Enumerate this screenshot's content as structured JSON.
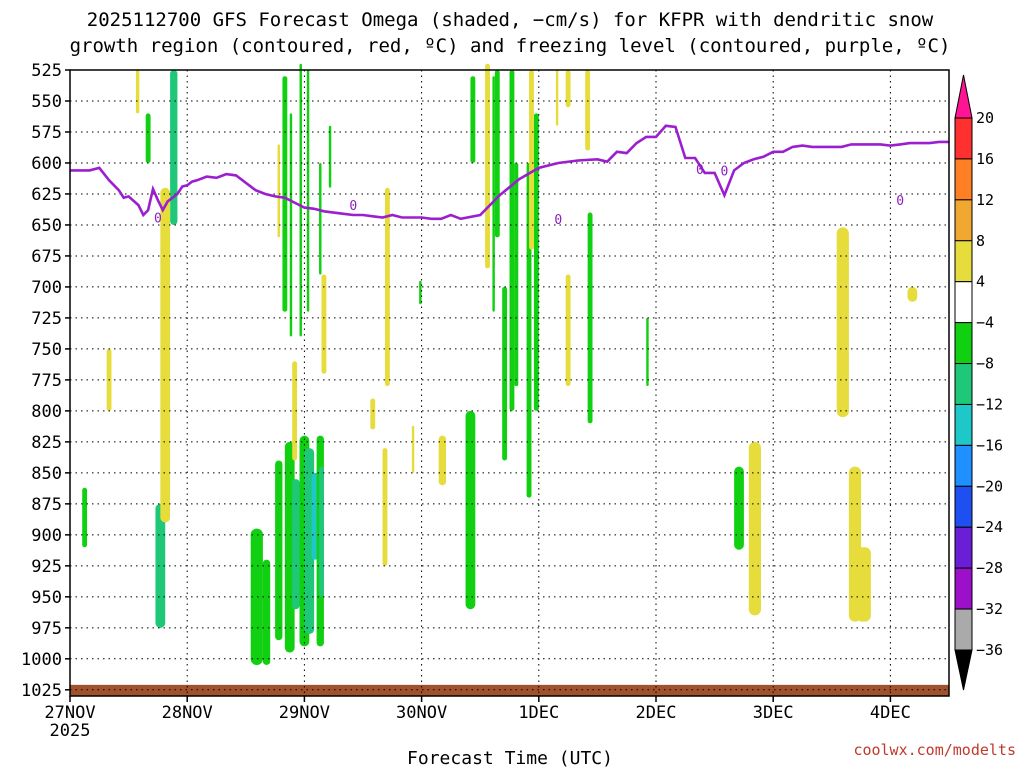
{
  "title_line1": "2025112700 GFS Forecast Omega (shaded, −cm/s) for KFPR with dendritic snow",
  "title_line2": "growth region (contoured, red, ºC) and freezing level (contoured, purple, ºC)",
  "xlabel": "Forecast Time (UTC)",
  "credit": "coolwx.com/modelts",
  "colors": {
    "freezing_level": "#9b1fcf",
    "ground": "#a0522d",
    "grid": "#000000"
  },
  "chart_data": {
    "type": "heatmap",
    "x_tick_labels": [
      "27NOV",
      "28NOV",
      "29NOV",
      "30NOV",
      "1DEC",
      "2DEC",
      "3DEC",
      "4DEC"
    ],
    "x_tick_sublabel": "2025",
    "x_range_hours": [
      0,
      180
    ],
    "y_axis": "pressure (hPa), inverted",
    "y_ticks": [
      525,
      550,
      575,
      600,
      625,
      650,
      675,
      700,
      725,
      750,
      775,
      800,
      825,
      850,
      875,
      900,
      925,
      950,
      975,
      1000,
      1025
    ],
    "y_range": [
      525,
      1030
    ],
    "grid": true,
    "colorbar": {
      "labels": [
        "20",
        "16",
        "12",
        "8",
        "4",
        "−4",
        "−8",
        "−12",
        "−16",
        "−20",
        "−24",
        "−28",
        "−32",
        "−36"
      ],
      "colors": [
        "#ff1493",
        "#ff3030",
        "#ff7f24",
        "#f0a830",
        "#e6dc3c",
        "#ffffff",
        "#11d011",
        "#1ec878",
        "#1ec8c8",
        "#1e90ff",
        "#1e4ff0",
        "#6a1fd6",
        "#9b10c8",
        "#aaaaaa",
        "#000000"
      ]
    },
    "freezing_level_label": "0",
    "freezing_level": {
      "x": [
        0,
        4,
        6,
        8,
        10,
        11,
        12,
        14,
        15,
        16,
        17,
        18,
        19,
        20,
        21,
        22,
        23,
        24,
        25,
        26,
        28,
        30,
        32,
        34,
        36,
        38,
        40,
        42,
        44,
        48,
        50,
        52,
        54,
        56,
        58,
        60,
        62,
        64,
        66,
        68,
        70,
        72,
        74,
        76,
        78,
        80,
        84,
        88,
        92,
        96,
        100,
        104,
        108,
        110,
        112,
        114,
        116,
        118,
        120,
        122,
        124,
        126,
        128,
        130,
        132,
        134,
        136,
        138,
        140,
        142,
        144,
        146,
        148,
        150,
        152,
        154,
        156,
        158,
        160,
        162,
        164,
        166,
        168,
        170,
        172,
        174,
        176,
        178,
        180
      ],
      "y": [
        606,
        606,
        604,
        614,
        622,
        628,
        627,
        634,
        642,
        638,
        621,
        630,
        638,
        631,
        628,
        625,
        619,
        618,
        615,
        614,
        611,
        612,
        609,
        610,
        616,
        622,
        625,
        627,
        628,
        636,
        637,
        639,
        640,
        641,
        642,
        642,
        643,
        644,
        642,
        644,
        644,
        644,
        645,
        645,
        642,
        645,
        642,
        626,
        613,
        604,
        600,
        598,
        597,
        599,
        591,
        592,
        584,
        579,
        579,
        570,
        571,
        596,
        596,
        608,
        608,
        626,
        606,
        600,
        597,
        595,
        591,
        591,
        587,
        586,
        587,
        587,
        587,
        587,
        585,
        585,
        585,
        585,
        586,
        585,
        584,
        584,
        584,
        583,
        583
      ]
    },
    "freezing_label_x": [
      18,
      58,
      100,
      129,
      134,
      170
    ],
    "freezing_label_y": [
      644,
      634,
      645,
      605,
      606,
      630
    ],
    "omega_shading": [
      {
        "x": [
          2.5,
          3.5
        ],
        "p_top": 862,
        "p_bot": 910,
        "value": -6
      },
      {
        "x": [
          17.5,
          19.5
        ],
        "p_top": 875,
        "p_bot": 975,
        "value": -8
      },
      {
        "x": [
          15.5,
          16.5
        ],
        "p_top": 560,
        "p_bot": 600,
        "value": -6
      },
      {
        "x": [
          20.5,
          22.0
        ],
        "p_top": 525,
        "p_bot": 650,
        "value": -8
      },
      {
        "x": [
          20.8,
          21.6
        ],
        "p_top": 525,
        "p_bot": 640,
        "value": -10
      },
      {
        "x": [
          7.5,
          8.5
        ],
        "p_top": 750,
        "p_bot": 800,
        "value": 5
      },
      {
        "x": [
          13.5,
          14.2
        ],
        "p_top": 525,
        "p_bot": 560,
        "value": 5
      },
      {
        "x": [
          18.5,
          20.5
        ],
        "p_top": 620,
        "p_bot": 890,
        "value": 5
      },
      {
        "x": [
          37,
          39.5
        ],
        "p_top": 895,
        "p_bot": 1005,
        "value": -6
      },
      {
        "x": [
          39.5,
          41
        ],
        "p_top": 920,
        "p_bot": 1005,
        "value": -6
      },
      {
        "x": [
          42,
          43.5
        ],
        "p_top": 840,
        "p_bot": 985,
        "value": -6
      },
      {
        "x": [
          44.0,
          46.0
        ],
        "p_top": 825,
        "p_bot": 995,
        "value": -6
      },
      {
        "x": [
          45.5,
          47.0
        ],
        "p_top": 855,
        "p_bot": 960,
        "value": -10
      },
      {
        "x": [
          47.0,
          49.0
        ],
        "p_top": 820,
        "p_bot": 990,
        "value": -6
      },
      {
        "x": [
          48.0,
          50.0
        ],
        "p_top": 830,
        "p_bot": 980,
        "value": -10
      },
      {
        "x": [
          49.5,
          51.0
        ],
        "p_top": 850,
        "p_bot": 920,
        "value": -14
      },
      {
        "x": [
          50.5,
          52.0
        ],
        "p_top": 820,
        "p_bot": 990,
        "value": -6
      },
      {
        "x": [
          51.0,
          52.0
        ],
        "p_top": 845,
        "p_bot": 950,
        "value": -10
      },
      {
        "x": [
          43.5,
          44.5
        ],
        "p_top": 530,
        "p_bot": 720,
        "value": -6
      },
      {
        "x": [
          45.0,
          45.5
        ],
        "p_top": 560,
        "p_bot": 740,
        "value": -6
      },
      {
        "x": [
          47.0,
          47.5
        ],
        "p_top": 520,
        "p_bot": 740,
        "value": -6
      },
      {
        "x": [
          48.5,
          49.0
        ],
        "p_top": 525,
        "p_bot": 720,
        "value": -6
      },
      {
        "x": [
          51.0,
          51.5
        ],
        "p_top": 600,
        "p_bot": 690,
        "value": -6
      },
      {
        "x": [
          53.0,
          53.5
        ],
        "p_top": 570,
        "p_bot": 620,
        "value": -6
      },
      {
        "x": [
          42.5,
          43.0
        ],
        "p_top": 585,
        "p_bot": 660,
        "value": 5
      },
      {
        "x": [
          45.5,
          46.5
        ],
        "p_top": 760,
        "p_bot": 840,
        "value": 5
      },
      {
        "x": [
          51.5,
          52.5
        ],
        "p_top": 690,
        "p_bot": 770,
        "value": 5
      },
      {
        "x": [
          64.5,
          65.5
        ],
        "p_top": 620,
        "p_bot": 780,
        "value": 5
      },
      {
        "x": [
          71.5,
          72.0
        ],
        "p_top": 695,
        "p_bot": 714,
        "value": -6
      },
      {
        "x": [
          61.5,
          62.5
        ],
        "p_top": 790,
        "p_bot": 815,
        "value": 5
      },
      {
        "x": [
          64.0,
          65.0
        ],
        "p_top": 830,
        "p_bot": 925,
        "value": 5
      },
      {
        "x": [
          70.0,
          70.5
        ],
        "p_top": 812,
        "p_bot": 850,
        "value": 5
      },
      {
        "x": [
          75.5,
          77.0
        ],
        "p_top": 820,
        "p_bot": 860,
        "value": 5
      },
      {
        "x": [
          81.0,
          83.0
        ],
        "p_top": 800,
        "p_bot": 960,
        "value": -6
      },
      {
        "x": [
          82.0,
          83.0
        ],
        "p_top": 530,
        "p_bot": 600,
        "value": -6
      },
      {
        "x": [
          85.0,
          86.0
        ],
        "p_top": 520,
        "p_bot": 685,
        "value": 5
      },
      {
        "x": [
          87.0,
          88.0
        ],
        "p_top": 525,
        "p_bot": 660,
        "value": -6
      },
      {
        "x": [
          86.5,
          87.0
        ],
        "p_top": 530,
        "p_bot": 720,
        "value": -6
      },
      {
        "x": [
          88.5,
          89.5
        ],
        "p_top": 700,
        "p_bot": 840,
        "value": -6
      },
      {
        "x": [
          90.0,
          91.0
        ],
        "p_top": 525,
        "p_bot": 800,
        "value": -6
      },
      {
        "x": [
          91.0,
          91.8
        ],
        "p_top": 600,
        "p_bot": 780,
        "value": -6
      },
      {
        "x": [
          93.5,
          94.5
        ],
        "p_top": 600,
        "p_bot": 870,
        "value": -6
      },
      {
        "x": [
          95.0,
          96.0
        ],
        "p_top": 560,
        "p_bot": 800,
        "value": -6
      },
      {
        "x": [
          94.0,
          95.0
        ],
        "p_top": 525,
        "p_bot": 670,
        "value": 5
      },
      {
        "x": [
          99.5,
          100.0
        ],
        "p_top": 525,
        "p_bot": 570,
        "value": 5
      },
      {
        "x": [
          101.5,
          102.5
        ],
        "p_top": 690,
        "p_bot": 780,
        "value": 5
      },
      {
        "x": [
          101.5,
          102.5
        ],
        "p_top": 525,
        "p_bot": 555,
        "value": 5
      },
      {
        "x": [
          105.5,
          106.5
        ],
        "p_top": 525,
        "p_bot": 590,
        "value": 5
      },
      {
        "x": [
          106.0,
          107.0
        ],
        "p_top": 640,
        "p_bot": 810,
        "value": -6
      },
      {
        "x": [
          118.0,
          118.5
        ],
        "p_top": 725,
        "p_bot": 780,
        "value": -6
      },
      {
        "x": [
          136.0,
          138.0
        ],
        "p_top": 845,
        "p_bot": 912,
        "value": -7
      },
      {
        "x": [
          139.0,
          141.5
        ],
        "p_top": 825,
        "p_bot": 965,
        "value": 5
      },
      {
        "x": [
          157.0,
          159.5
        ],
        "p_top": 652,
        "p_bot": 805,
        "value": 5
      },
      {
        "x": [
          159.5,
          162.0
        ],
        "p_top": 845,
        "p_bot": 970,
        "value": 5
      },
      {
        "x": [
          161.0,
          164.0
        ],
        "p_top": 910,
        "p_bot": 970,
        "value": 5
      },
      {
        "x": [
          171.5,
          173.5
        ],
        "p_top": 700,
        "p_bot": 712,
        "value": 5
      }
    ]
  }
}
